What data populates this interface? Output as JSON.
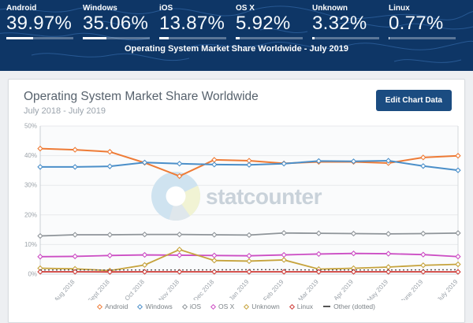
{
  "header": {
    "title": "Operating System Market Share Worldwide - July 2019",
    "stats": [
      {
        "label": "Android",
        "value": "39.97%",
        "pct": 39.97
      },
      {
        "label": "Windows",
        "value": "35.06%",
        "pct": 35.06
      },
      {
        "label": "iOS",
        "value": "13.87%",
        "pct": 13.87
      },
      {
        "label": "OS X",
        "value": "5.92%",
        "pct": 5.92
      },
      {
        "label": "Unknown",
        "value": "3.32%",
        "pct": 3.32
      },
      {
        "label": "Linux",
        "value": "0.77%",
        "pct": 0.77
      }
    ]
  },
  "card": {
    "title": "Operating System Market Share Worldwide",
    "subtitle": "July 2018 - July 2019",
    "edit_button": "Edit Chart Data"
  },
  "watermark": {
    "text": "statcounter"
  },
  "chart_data": {
    "type": "line",
    "title": "Operating System Market Share Worldwide",
    "subtitle": "July 2018 - July 2019",
    "x": [
      "July 2018",
      "Aug 2018",
      "Sept 2018",
      "Oct 2018",
      "Nov 2018",
      "Dec 2018",
      "Jan 2019",
      "Feb 2019",
      "Mar 2019",
      "Apr 2019",
      "May 2019",
      "June 2019",
      "July 2019"
    ],
    "x_tick_labels_shown": [
      "Aug 2018",
      "Sept 2018",
      "Oct 2018",
      "Nov 2018",
      "Dec 2018",
      "Jan 2019",
      "Feb 2019",
      "Mar 2019",
      "Apr 2019",
      "May 2019",
      "June 2019",
      "July 2019"
    ],
    "ylim": [
      0,
      50
    ],
    "yticks": [
      "0%",
      "10%",
      "20%",
      "30%",
      "40%",
      "50%"
    ],
    "grid": true,
    "legend_position": "bottom",
    "series": [
      {
        "name": "Android",
        "color": "#ee7b36",
        "style": "solid",
        "values": [
          42.4,
          42.0,
          41.3,
          37.6,
          33.1,
          38.6,
          38.3,
          37.4,
          37.9,
          37.9,
          37.5,
          39.4,
          39.97
        ]
      },
      {
        "name": "Windows",
        "color": "#4b8fc9",
        "style": "solid",
        "values": [
          36.2,
          36.2,
          36.4,
          37.7,
          37.3,
          37.0,
          36.9,
          37.3,
          38.2,
          38.1,
          38.3,
          36.5,
          35.06
        ]
      },
      {
        "name": "iOS",
        "color": "#8e9499",
        "style": "solid",
        "values": [
          12.9,
          13.3,
          13.3,
          13.4,
          13.4,
          13.3,
          13.2,
          13.9,
          13.8,
          13.7,
          13.6,
          13.7,
          13.87
        ]
      },
      {
        "name": "OS X",
        "color": "#cc4ec4",
        "style": "solid",
        "values": [
          5.9,
          6.0,
          6.3,
          6.5,
          6.4,
          6.3,
          6.2,
          6.5,
          6.8,
          7.0,
          6.9,
          6.6,
          5.92
        ]
      },
      {
        "name": "Unknown",
        "color": "#c6a33c",
        "style": "solid",
        "values": [
          2.0,
          1.8,
          1.2,
          3.1,
          8.3,
          4.6,
          4.4,
          4.8,
          1.7,
          2.0,
          2.4,
          3.0,
          3.32
        ]
      },
      {
        "name": "Linux",
        "color": "#ce3a36",
        "style": "solid",
        "values": [
          0.8,
          0.8,
          0.75,
          0.8,
          0.8,
          0.8,
          0.8,
          0.8,
          0.8,
          0.8,
          0.8,
          0.8,
          0.77
        ]
      },
      {
        "name": "Other (dotted)",
        "color": "#555555",
        "style": "dotted",
        "values": [
          1.4,
          1.4,
          1.4,
          1.4,
          1.4,
          1.45,
          1.5,
          1.5,
          1.4,
          1.4,
          1.4,
          1.45,
          1.5
        ]
      }
    ]
  },
  "colors": {
    "header_bg": "#0e3666",
    "map_line": "#2c5f9b",
    "button_bg": "#1b4c81",
    "grid_line": "#e8eaec",
    "axis_line": "#c9cfd4",
    "tick_text": "#9ba2a9",
    "watermark_text": "#c9d2da",
    "watermark_blue": "#cfe3f0",
    "watermark_yellow": "#f1f3d4",
    "watermark_gray": "#dfe7ec"
  }
}
